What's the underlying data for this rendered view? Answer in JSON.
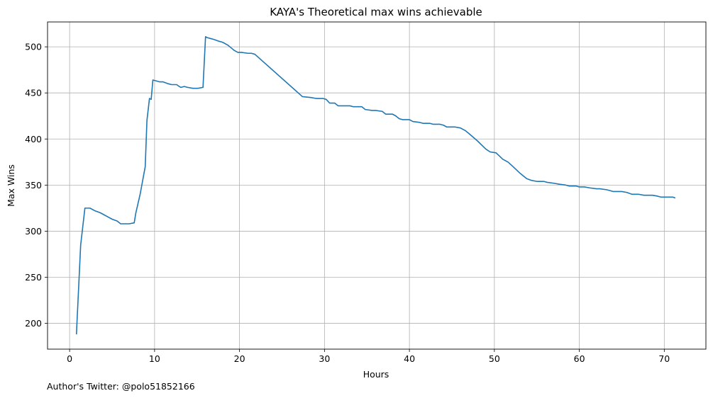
{
  "footer_text": "Author's Twitter: @polo51852166",
  "chart_data": {
    "type": "line",
    "title": "KAYA's Theoretical max wins achievable",
    "xlabel": "Hours",
    "ylabel": "Max Wins",
    "xlim": [
      -2.6,
      74.9
    ],
    "ylim": [
      172,
      527
    ],
    "xticks": [
      0,
      10,
      20,
      30,
      40,
      50,
      60,
      70
    ],
    "yticks": [
      200,
      250,
      300,
      350,
      400,
      450,
      500
    ],
    "grid": true,
    "line_color": "#1f77b4",
    "series": [
      {
        "x": [
          0.8,
          1.3,
          1.8,
          2.4,
          3.0,
          3.6,
          4.0,
          4.4,
          5.0,
          5.6,
          6.0,
          6.4,
          7.0,
          7.6,
          7.8,
          8.3,
          8.9,
          9.1,
          9.4,
          9.6,
          9.8,
          10.2,
          10.6,
          11.0,
          11.6,
          12.0,
          12.6,
          12.9,
          13.1,
          13.5,
          13.9,
          14.5,
          15.1,
          15.7,
          16.0,
          16.2,
          16.6,
          17.0,
          17.6,
          18.0,
          18.6,
          19.0,
          19.4,
          19.8,
          20.2,
          21.0,
          21.4,
          21.8,
          27.4,
          28.4,
          29.0,
          29.4,
          29.8,
          30.2,
          30.6,
          31.2,
          31.6,
          33.0,
          33.4,
          34.4,
          34.8,
          35.6,
          36.0,
          36.8,
          37.2,
          38.0,
          38.4,
          38.8,
          39.2,
          40.0,
          40.4,
          41.2,
          41.6,
          42.4,
          42.8,
          43.6,
          44.0,
          44.4,
          45.4,
          46.0,
          46.6,
          47.0,
          48.0,
          49.0,
          49.5,
          50.2,
          51.0,
          51.6,
          52.2,
          53.0,
          53.8,
          54.4,
          55.0,
          55.8,
          56.2,
          57.0,
          57.6,
          58.4,
          58.8,
          59.6,
          60.0,
          60.6,
          61.2,
          62.0,
          62.4,
          63.2,
          63.6,
          64.0,
          65.0,
          65.6,
          66.2,
          67.0,
          67.6,
          68.6,
          69.2,
          69.6,
          70.0,
          71.0,
          71.3
        ],
        "values": [
          188,
          285,
          325,
          325,
          322,
          320,
          318,
          316,
          313,
          311,
          308,
          308,
          308,
          309,
          320,
          340,
          370,
          420,
          444,
          443,
          464,
          463,
          462,
          462,
          460,
          459,
          459,
          457,
          456,
          457,
          456,
          455,
          455,
          456,
          511,
          510,
          509,
          508,
          506,
          505,
          502,
          499,
          496,
          494,
          494,
          493,
          493,
          492,
          446,
          445,
          444,
          444,
          444,
          443,
          439,
          439,
          436,
          436,
          435,
          435,
          432,
          431,
          431,
          430,
          427,
          427,
          425,
          422,
          421,
          421,
          419,
          418,
          417,
          417,
          416,
          416,
          415,
          413,
          413,
          412,
          409,
          406,
          398,
          389,
          386,
          385,
          378,
          375,
          370,
          363,
          357,
          355,
          354,
          354,
          353,
          352,
          351,
          350,
          349,
          349,
          348,
          348,
          347,
          346,
          346,
          345,
          344,
          343,
          343,
          342,
          340,
          340,
          339,
          339,
          338,
          337,
          337,
          337,
          336
        ]
      }
    ]
  }
}
